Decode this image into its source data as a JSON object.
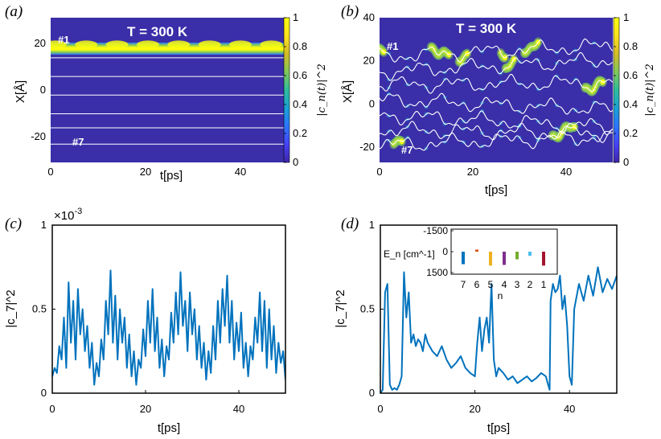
{
  "colors": {
    "background_map": "#3a2fa8",
    "line_blue": "#0072bd",
    "trajectory_white": "#ffffff",
    "colormap": [
      "#3e26a8",
      "#4743f5",
      "#2c75fd",
      "#1aa3d4",
      "#2fbc9c",
      "#81c85a",
      "#d4bb27",
      "#fde31f",
      "#f9fb0e"
    ]
  },
  "chart_data": [
    {
      "id": "a",
      "type": "heatmap",
      "panel_label": "(a)",
      "title": "T = 300 K",
      "xlabel": "t[ps]",
      "ylabel": "X[Å]",
      "xlim": [
        0,
        50
      ],
      "ylim": [
        -31,
        31
      ],
      "xticks": [
        "0",
        "20",
        "40"
      ],
      "xtick_values": [
        0,
        20,
        40
      ],
      "yticks": [
        "20",
        "0",
        "-20"
      ],
      "ytick_values": [
        20,
        0,
        -20
      ],
      "site_labels": [
        "#1",
        "#7"
      ],
      "site_positions": [
        19.5,
        14,
        6,
        -2,
        -10,
        -16,
        -23
      ],
      "occupied_site": 1,
      "occupation_pattern": "site #1 holds population ~0.9-1 for the full 0-50 ps",
      "colorbar": {
        "label": "|c_n(t)|^2",
        "ticks": [
          "1",
          "0.8",
          "0.6",
          "0.4",
          "0.2",
          "0"
        ],
        "tick_values": [
          1,
          0.8,
          0.6,
          0.4,
          0.2,
          0
        ]
      }
    },
    {
      "id": "b",
      "type": "heatmap",
      "panel_label": "(b)",
      "title": "T = 300 K",
      "xlabel": "t[ps]",
      "ylabel": "X[Å]",
      "xlim": [
        0,
        50
      ],
      "ylim": [
        -27,
        40
      ],
      "xticks": [
        "0",
        "20",
        "40"
      ],
      "xtick_values": [
        0,
        20,
        40
      ],
      "yticks": [
        "40",
        "20",
        "0",
        "-20"
      ],
      "ytick_values": [
        40,
        20,
        0,
        -20
      ],
      "site_labels": [
        "#1",
        "#7"
      ],
      "site_base_positions": [
        22,
        15,
        9,
        2,
        -5,
        -12,
        -19
      ],
      "hot_segments": [
        {
          "site": 1,
          "t0": 0,
          "t1": 1
        },
        {
          "site": 7,
          "t0": 3,
          "t1": 5
        },
        {
          "site": 1,
          "t0": 11,
          "t1": 15
        },
        {
          "site": 1,
          "t0": 17,
          "t1": 19
        },
        {
          "site": 1,
          "t0": 26,
          "t1": 27
        },
        {
          "site": 2,
          "t0": 27,
          "t1": 29
        },
        {
          "site": 1,
          "t0": 31,
          "t1": 34
        },
        {
          "site": 6,
          "t0": 37,
          "t1": 42
        },
        {
          "site": 3,
          "t0": 44,
          "t1": 48
        }
      ],
      "colorbar": {
        "label": "|c_n(t)|^2",
        "ticks": [
          "1",
          "0.8",
          "0.6",
          "0.4",
          "0.2",
          "0"
        ],
        "tick_values": [
          1,
          0.8,
          0.6,
          0.4,
          0.2,
          0
        ]
      }
    },
    {
      "id": "c",
      "type": "line",
      "panel_label": "(c)",
      "xlabel": "t[ps]",
      "ylabel": "|c_7|^2",
      "scale_label": "×10",
      "scale_exponent": "-3",
      "xlim": [
        0,
        50
      ],
      "ylim": [
        0,
        1
      ],
      "xticks": [
        "0",
        "20",
        "40"
      ],
      "xtick_values": [
        0,
        20,
        40
      ],
      "yticks": [
        "1",
        "0.5",
        "0"
      ],
      "ytick_values": [
        1,
        0.5,
        0
      ],
      "series": [
        {
          "name": "|c7|^2",
          "color": "#0072bd",
          "t": [
            0,
            0.5,
            1,
            1.5,
            2,
            2.5,
            3,
            3.5,
            4,
            4.5,
            5,
            5.5,
            6,
            6.5,
            7,
            7.5,
            8,
            8.5,
            9,
            9.5,
            10,
            10.5,
            11,
            11.5,
            12,
            12.5,
            13,
            13.5,
            14,
            14.5,
            15,
            15.5,
            16,
            16.5,
            17,
            17.5,
            18,
            18.5,
            19,
            19.5,
            20,
            20.5,
            21,
            21.5,
            22,
            22.5,
            23,
            23.5,
            24,
            24.5,
            25,
            25.5,
            26,
            26.5,
            27,
            27.5,
            28,
            28.5,
            29,
            29.5,
            30,
            30.5,
            31,
            31.5,
            32,
            32.5,
            33,
            33.5,
            34,
            34.5,
            35,
            35.5,
            36,
            36.5,
            37,
            37.5,
            38,
            38.5,
            39,
            39.5,
            40,
            40.5,
            41,
            41.5,
            42,
            42.5,
            43,
            43.5,
            44,
            44.5,
            45,
            45.5,
            46,
            46.5,
            47,
            47.5,
            48,
            48.5,
            49,
            49.5,
            50
          ],
          "values": [
            0.1,
            0.15,
            0.12,
            0.28,
            0.2,
            0.45,
            0.15,
            0.66,
            0.3,
            0.55,
            0.2,
            0.62,
            0.35,
            0.5,
            0.25,
            0.4,
            0.15,
            0.3,
            0.05,
            0.18,
            0.1,
            0.32,
            0.2,
            0.55,
            0.35,
            0.73,
            0.3,
            0.58,
            0.2,
            0.5,
            0.3,
            0.45,
            0.15,
            0.35,
            0.1,
            0.25,
            0.05,
            0.2,
            0.15,
            0.38,
            0.22,
            0.55,
            0.3,
            0.62,
            0.25,
            0.45,
            0.15,
            0.32,
            0.1,
            0.28,
            0.2,
            0.48,
            0.3,
            0.6,
            0.35,
            0.72,
            0.4,
            0.55,
            0.25,
            0.6,
            0.35,
            0.5,
            0.2,
            0.4,
            0.15,
            0.3,
            0.08,
            0.25,
            0.12,
            0.4,
            0.2,
            0.55,
            0.3,
            0.62,
            0.4,
            0.7,
            0.3,
            0.55,
            0.2,
            0.42,
            0.25,
            0.48,
            0.15,
            0.3,
            0.1,
            0.28,
            0.2,
            0.45,
            0.3,
            0.6,
            0.25,
            0.55,
            0.15,
            0.5,
            0.2,
            0.4,
            0.12,
            0.3,
            0.18,
            0.25,
            0.08
          ]
        }
      ]
    },
    {
      "id": "d",
      "type": "line",
      "panel_label": "(d)",
      "xlabel": "t[ps]",
      "ylabel": "|c_7|^2",
      "xlim": [
        0,
        50
      ],
      "ylim": [
        0,
        1
      ],
      "xticks": [
        "0",
        "20",
        "40"
      ],
      "xtick_values": [
        0,
        20,
        40
      ],
      "yticks": [
        "1",
        "0.5",
        "0"
      ],
      "ytick_values": [
        1,
        0.5,
        0
      ],
      "series": [
        {
          "name": "|c7|^2",
          "color": "#0072bd",
          "t": [
            0,
            0.5,
            1,
            1.5,
            2,
            2.5,
            3,
            3.5,
            4,
            4.5,
            5,
            5.5,
            6,
            6.5,
            7,
            7.5,
            8,
            8.5,
            9,
            9.5,
            10,
            11,
            12,
            13,
            14,
            15,
            16,
            17,
            18,
            19,
            20,
            20.5,
            21,
            21.5,
            22,
            22.5,
            23,
            23.5,
            24,
            24.5,
            25,
            26,
            27,
            28,
            29,
            30,
            31,
            32,
            33,
            34,
            35,
            35.5,
            35.8,
            36,
            36.5,
            37,
            37.5,
            38,
            38.5,
            39,
            39.5,
            40,
            40.5,
            41,
            42,
            43,
            44,
            45,
            46,
            47,
            48,
            49,
            50
          ],
          "values": [
            0.0,
            0.02,
            0.6,
            0.65,
            0.05,
            0.02,
            0.03,
            0.02,
            0.05,
            0.1,
            0.72,
            0.45,
            0.6,
            0.3,
            0.35,
            0.28,
            0.32,
            0.3,
            0.25,
            0.35,
            0.3,
            0.25,
            0.22,
            0.28,
            0.2,
            0.15,
            0.18,
            0.22,
            0.15,
            0.12,
            0.1,
            0.3,
            0.45,
            0.25,
            0.38,
            0.45,
            0.3,
            0.65,
            0.2,
            0.1,
            0.15,
            0.12,
            0.08,
            0.1,
            0.06,
            0.08,
            0.1,
            0.07,
            0.09,
            0.12,
            0.1,
            0.05,
            0.02,
            0.55,
            0.65,
            0.6,
            0.62,
            0.7,
            0.5,
            0.58,
            0.4,
            0.1,
            0.05,
            0.5,
            0.65,
            0.55,
            0.7,
            0.58,
            0.75,
            0.6,
            0.68,
            0.62,
            0.7
          ]
        }
      ],
      "inset": {
        "type": "bar",
        "ylabel": "E_n [cm^-1]",
        "xlabel": "n",
        "ylim_reversed": [
          -1500,
          1500
        ],
        "yticks": [
          "-1500",
          "0",
          "1500"
        ],
        "ytick_values": [
          -1500,
          0,
          1500
        ],
        "categories": [
          "7",
          "6",
          "5",
          "4",
          "3",
          "2",
          "1"
        ],
        "values": [
          900,
          -150,
          1000,
          950,
          550,
          300,
          1000
        ],
        "bar_colors": [
          "#0072bd",
          "#d95319",
          "#edb120",
          "#7e2f8e",
          "#77ac30",
          "#4dbeee",
          "#a2142f"
        ]
      }
    }
  ]
}
